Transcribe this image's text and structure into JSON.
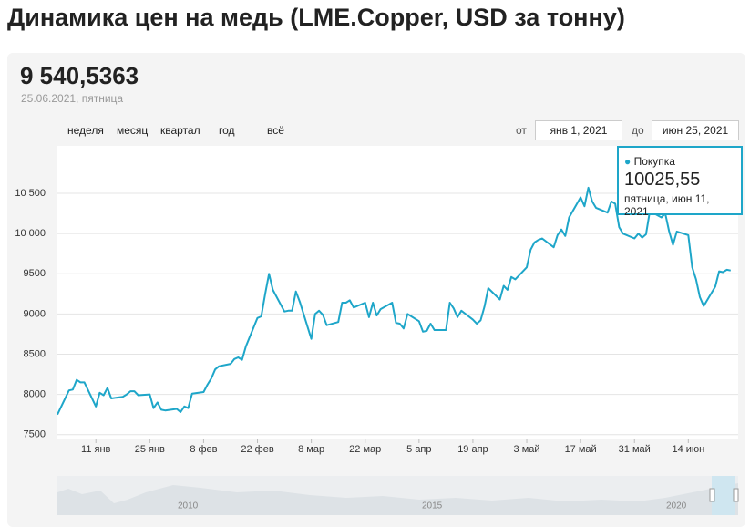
{
  "header": {
    "title": "Динамика цен на медь (LME.Copper, USD за тонну)",
    "current_value": "9 540,5363",
    "current_date": "25.06.2021, пятница"
  },
  "controls": {
    "periods": [
      "неделя",
      "месяц",
      "квартал",
      "год",
      "всё"
    ],
    "from_label": "от",
    "from": "янв 1, 2021",
    "to_label": "до",
    "to": "июн 25, 2021"
  },
  "navigator": {
    "labels": [
      "2010",
      "2015",
      "2020"
    ]
  },
  "chart_data": {
    "type": "line",
    "tooltip": {
      "series": "Покупка",
      "value": "10025,55",
      "date": "пятница, июн 11, 2021"
    },
    "x": [
      "2021-01-01",
      "2021-01-04",
      "2021-01-05",
      "2021-01-06",
      "2021-01-07",
      "2021-01-08",
      "2021-01-11",
      "2021-01-12",
      "2021-01-13",
      "2021-01-14",
      "2021-01-15",
      "2021-01-18",
      "2021-01-19",
      "2021-01-20",
      "2021-01-21",
      "2021-01-22",
      "2021-01-25",
      "2021-01-26",
      "2021-01-27",
      "2021-01-28",
      "2021-01-29",
      "2021-02-01",
      "2021-02-02",
      "2021-02-03",
      "2021-02-04",
      "2021-02-05",
      "2021-02-08",
      "2021-02-09",
      "2021-02-10",
      "2021-02-11",
      "2021-02-12",
      "2021-02-15",
      "2021-02-16",
      "2021-02-17",
      "2021-02-18",
      "2021-02-19",
      "2021-02-22",
      "2021-02-23",
      "2021-02-24",
      "2021-02-25",
      "2021-02-26",
      "2021-03-01",
      "2021-03-02",
      "2021-03-03",
      "2021-03-04",
      "2021-03-05",
      "2021-03-08",
      "2021-03-09",
      "2021-03-10",
      "2021-03-11",
      "2021-03-12",
      "2021-03-15",
      "2021-03-16",
      "2021-03-17",
      "2021-03-18",
      "2021-03-19",
      "2021-03-22",
      "2021-03-23",
      "2021-03-24",
      "2021-03-25",
      "2021-03-26",
      "2021-03-29",
      "2021-03-30",
      "2021-03-31",
      "2021-04-01",
      "2021-04-02",
      "2021-04-05",
      "2021-04-06",
      "2021-04-07",
      "2021-04-08",
      "2021-04-09",
      "2021-04-12",
      "2021-04-13",
      "2021-04-14",
      "2021-04-15",
      "2021-04-16",
      "2021-04-19",
      "2021-04-20",
      "2021-04-21",
      "2021-04-22",
      "2021-04-23",
      "2021-04-26",
      "2021-04-27",
      "2021-04-28",
      "2021-04-29",
      "2021-04-30",
      "2021-05-03",
      "2021-05-04",
      "2021-05-05",
      "2021-05-06",
      "2021-05-07",
      "2021-05-10",
      "2021-05-11",
      "2021-05-12",
      "2021-05-13",
      "2021-05-14",
      "2021-05-17",
      "2021-05-18",
      "2021-05-19",
      "2021-05-20",
      "2021-05-21",
      "2021-05-24",
      "2021-05-25",
      "2021-05-26",
      "2021-05-27",
      "2021-05-28",
      "2021-05-31",
      "2021-06-01",
      "2021-06-02",
      "2021-06-03",
      "2021-06-04",
      "2021-06-07",
      "2021-06-08",
      "2021-06-09",
      "2021-06-10",
      "2021-06-11",
      "2021-06-14",
      "2021-06-15",
      "2021-06-16",
      "2021-06-17",
      "2021-06-18",
      "2021-06-21",
      "2021-06-22",
      "2021-06-23",
      "2021-06-24",
      "2021-06-25"
    ],
    "series": [
      {
        "name": "Покупка",
        "color": "#1ea6c9",
        "values": [
          7750,
          8050,
          8060,
          8180,
          8150,
          8150,
          7850,
          8020,
          7990,
          8080,
          7950,
          7970,
          8000,
          8040,
          8040,
          7990,
          8000,
          7830,
          7900,
          7810,
          7800,
          7820,
          7780,
          7850,
          7830,
          8010,
          8030,
          8120,
          8200,
          8310,
          8350,
          8380,
          8440,
          8460,
          8430,
          8600,
          8950,
          8970,
          9250,
          9500,
          9300,
          9030,
          9040,
          9040,
          9280,
          9150,
          8690,
          9000,
          9040,
          8990,
          8860,
          8900,
          9140,
          9140,
          9170,
          9080,
          9140,
          8960,
          9140,
          8980,
          9060,
          9140,
          8890,
          8880,
          8820,
          9000,
          8910,
          8780,
          8790,
          8880,
          8800,
          8800,
          9140,
          9070,
          8960,
          9040,
          8930,
          8880,
          8920,
          9090,
          9320,
          9180,
          9350,
          9300,
          9460,
          9430,
          9580,
          9800,
          9890,
          9920,
          9940,
          9830,
          9980,
          10050,
          9970,
          10200,
          10450,
          10340,
          10570,
          10400,
          10320,
          10260,
          10400,
          10370,
          10080,
          10000,
          9940,
          10000,
          9950,
          9990,
          10280,
          10200,
          10250,
          10030,
          9860,
          10025.55,
          9980,
          9580,
          9430,
          9210,
          9100,
          9340,
          9530,
          9520,
          9550,
          9540.5363
        ]
      }
    ],
    "xlim": [
      "2021-01-01",
      "2021-06-26"
    ],
    "xticks": [
      {
        "value": "2021-01-11",
        "label": "11 янв"
      },
      {
        "value": "2021-01-25",
        "label": "25 янв"
      },
      {
        "value": "2021-02-08",
        "label": "8 фев"
      },
      {
        "value": "2021-02-22",
        "label": "22 фев"
      },
      {
        "value": "2021-03-08",
        "label": "8 мар"
      },
      {
        "value": "2021-03-22",
        "label": "22 мар"
      },
      {
        "value": "2021-04-05",
        "label": "5 апр"
      },
      {
        "value": "2021-04-19",
        "label": "19 апр"
      },
      {
        "value": "2021-05-03",
        "label": "3 май"
      },
      {
        "value": "2021-05-17",
        "label": "17 май"
      },
      {
        "value": "2021-05-31",
        "label": "31 май"
      },
      {
        "value": "2021-06-14",
        "label": "14 июн"
      }
    ],
    "ylim": [
      7440,
      11090
    ],
    "yticks": [
      7500,
      8000,
      8500,
      9000,
      9500,
      {
        "value": 10000,
        "label": "10 000"
      },
      {
        "value": 10500,
        "label": "10 500"
      }
    ],
    "grid": true
  }
}
